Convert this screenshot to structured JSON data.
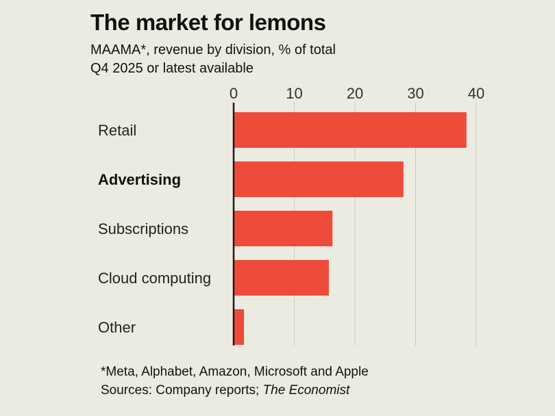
{
  "header": {
    "title": "The market for lemons",
    "subtitle_line1": "MAAMA*, revenue by division, % of total",
    "subtitle_line2": "Q4 2025 or latest available"
  },
  "footer": {
    "note": "*Meta, Alphabet, Amazon, Microsoft and Apple",
    "sources_prefix": "Sources: Company reports; ",
    "sources_italic": "The Economist"
  },
  "colors": {
    "bar": "#ee4b3a",
    "grid": "#c9c8bf",
    "axis": "#1a1a1a",
    "background": "#ecebe1"
  },
  "chart_data": {
    "type": "bar",
    "orientation": "horizontal",
    "title": "The market for lemons",
    "xlabel": "",
    "ylabel": "",
    "xlim": [
      0,
      40
    ],
    "ticks": [
      0,
      10,
      20,
      30,
      40
    ],
    "tick_labels": [
      "0",
      "10",
      "20",
      "30",
      "40"
    ],
    "grid": true,
    "categories": [
      "Retail",
      "Advertising",
      "Subscriptions",
      "Cloud computing",
      "Other"
    ],
    "highlighted": [
      "Advertising"
    ],
    "values": [
      38.4,
      28,
      16.3,
      15.7,
      1.7
    ]
  }
}
